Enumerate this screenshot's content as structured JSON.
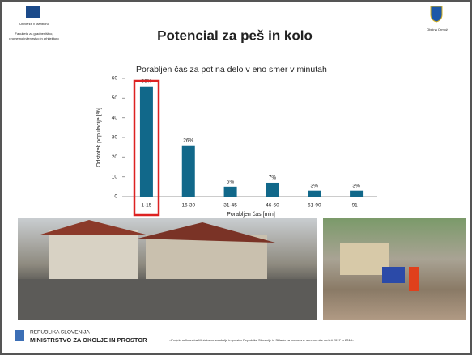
{
  "header": {
    "university": "Univerza v Mariboru",
    "faculty": [
      "Fakulteta za gradbeništvo,",
      "prometno inženirstvo in arhitekturo"
    ],
    "title": "Potencial za peš in kolo",
    "municipality": "Občina Ormož"
  },
  "chart_data": {
    "type": "bar",
    "title": "Porabljen čas za pot na delo v eno smer v minutah",
    "x_label": "Porabljen čas [min]",
    "y_label": "Odstotek populacije [%]",
    "categories": [
      "1-15",
      "16-30",
      "31-45",
      "46-60",
      "61-90",
      "91+"
    ],
    "values": [
      56,
      26,
      5,
      7,
      3,
      3
    ],
    "value_labels": [
      "56%",
      "26%",
      "5%",
      "7%",
      "3%",
      "3%"
    ],
    "color": "#11688a",
    "ylim": [
      0,
      60
    ],
    "yticks": [
      0,
      10,
      20,
      30,
      40,
      50,
      60
    ],
    "grid": false
  },
  "footer": {
    "country": "REPUBLIKA SLOVENIJA",
    "ministry": "MINISTRSTVO ZA OKOLJE IN PROSTOR",
    "note": "»Projekt sofinancira Ministrstvo za okolje in prostor Republike Slovenije iz Sklada za podnebne spremembe za leti 2017 in 2018«"
  }
}
